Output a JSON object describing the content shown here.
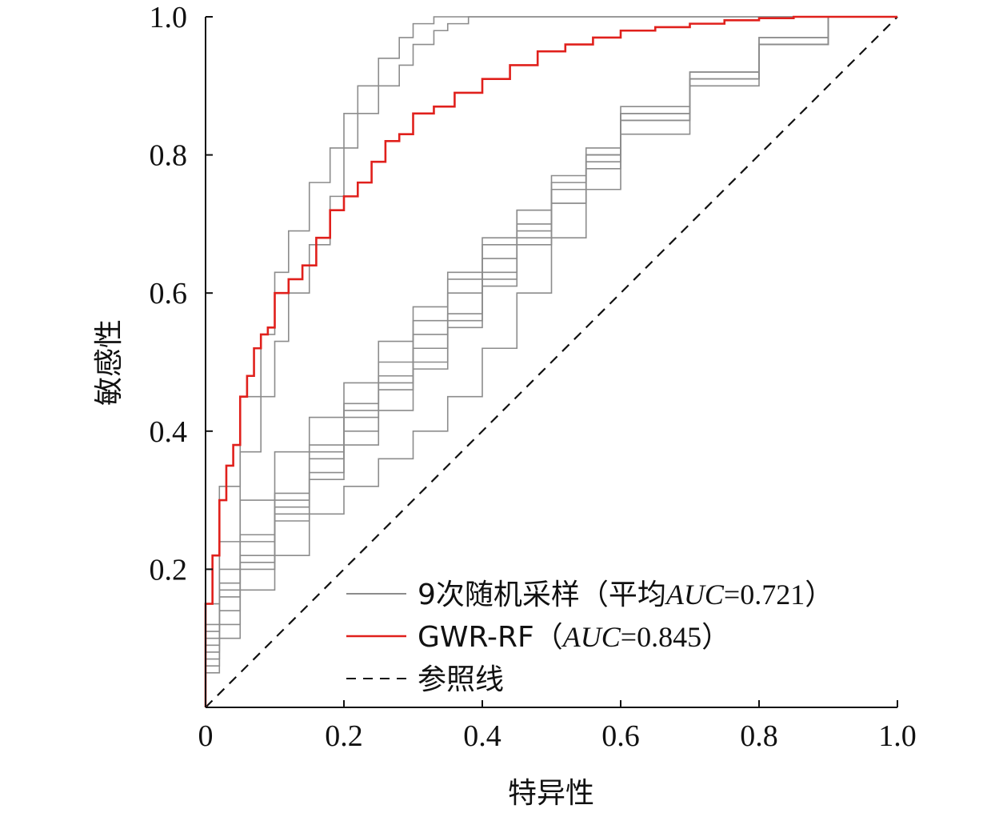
{
  "chart_data": {
    "type": "line",
    "xlabel": "特异性",
    "ylabel": "敏感性",
    "xlim": [
      0,
      1
    ],
    "ylim": [
      0,
      1
    ],
    "x_ticks": [
      "0",
      "0.2",
      "0.4",
      "0.6",
      "0.8",
      "1.0"
    ],
    "y_ticks": [
      "0.2",
      "0.4",
      "0.6",
      "0.8",
      "1.0"
    ],
    "grid": false,
    "legend_position": "bottom-right",
    "legend": [
      {
        "label_prefix": "9次随机采样（平均",
        "auc_label": "AUC",
        "auc_value": "=0.721",
        "label_suffix": "）",
        "color": "#8c8c8c",
        "dash": "solid"
      },
      {
        "label_prefix": "GWR-RF（",
        "auc_label": "AUC",
        "auc_value": "=0.845",
        "label_suffix": "）",
        "color": "#e0201c",
        "dash": "solid"
      },
      {
        "label_prefix": "参照线",
        "auc_label": "",
        "auc_value": "",
        "label_suffix": "",
        "color": "#111111",
        "dash": "dashed"
      }
    ],
    "series": [
      {
        "group": "random",
        "auc": 0.721,
        "x": [
          0,
          0.02,
          0.05,
          0.1,
          0.15,
          0.2,
          0.25,
          0.3,
          0.35,
          0.4,
          0.45,
          0.5,
          0.55,
          0.6,
          0.7,
          0.8,
          0.9,
          1.0
        ],
        "y": [
          0,
          0.1,
          0.18,
          0.25,
          0.31,
          0.37,
          0.43,
          0.48,
          0.54,
          0.6,
          0.65,
          0.7,
          0.75,
          0.8,
          0.86,
          0.92,
          0.97,
          1.0
        ]
      },
      {
        "group": "random",
        "auc": 0.721,
        "x": [
          0,
          0.02,
          0.05,
          0.1,
          0.15,
          0.2,
          0.25,
          0.3,
          0.35,
          0.4,
          0.45,
          0.5,
          0.55,
          0.6,
          0.7,
          0.8,
          0.9,
          1.0
        ],
        "y": [
          0,
          0.08,
          0.16,
          0.22,
          0.29,
          0.36,
          0.42,
          0.47,
          0.52,
          0.57,
          0.63,
          0.68,
          0.73,
          0.78,
          0.85,
          0.91,
          0.96,
          1.0
        ]
      },
      {
        "group": "random",
        "auc": 0.721,
        "x": [
          0,
          0.02,
          0.05,
          0.1,
          0.15,
          0.2,
          0.25,
          0.3,
          0.35,
          0.4,
          0.45,
          0.5,
          0.55,
          0.6,
          0.7,
          0.8,
          0.9,
          1.0
        ],
        "y": [
          0,
          0.06,
          0.12,
          0.2,
          0.27,
          0.33,
          0.38,
          0.43,
          0.49,
          0.55,
          0.61,
          0.67,
          0.73,
          0.79,
          0.85,
          0.91,
          0.96,
          1.0
        ]
      },
      {
        "group": "random",
        "auc": 0.721,
        "x": [
          0,
          0.02,
          0.05,
          0.1,
          0.15,
          0.2,
          0.25,
          0.3,
          0.35,
          0.4,
          0.45,
          0.5,
          0.55,
          0.6,
          0.7,
          0.8,
          0.9,
          1.0
        ],
        "y": [
          0,
          0.05,
          0.1,
          0.17,
          0.22,
          0.28,
          0.32,
          0.36,
          0.4,
          0.45,
          0.52,
          0.6,
          0.68,
          0.75,
          0.83,
          0.9,
          0.96,
          1.0
        ]
      },
      {
        "group": "random",
        "auc": 0.721,
        "x": [
          0,
          0.02,
          0.05,
          0.1,
          0.15,
          0.2,
          0.25,
          0.3,
          0.35,
          0.4,
          0.45,
          0.5,
          0.55,
          0.6,
          0.7,
          0.8,
          0.9,
          1.0
        ],
        "y": [
          0,
          0.09,
          0.17,
          0.24,
          0.3,
          0.38,
          0.44,
          0.5,
          0.56,
          0.62,
          0.67,
          0.72,
          0.77,
          0.81,
          0.87,
          0.92,
          0.97,
          1.0
        ]
      },
      {
        "group": "random",
        "auc": 0.721,
        "x": [
          0,
          0.02,
          0.05,
          0.1,
          0.15,
          0.2,
          0.25,
          0.3,
          0.35,
          0.4,
          0.45,
          0.5,
          0.55,
          0.6,
          0.7,
          0.8,
          0.9,
          1.0
        ],
        "y": [
          0,
          0.07,
          0.14,
          0.21,
          0.28,
          0.34,
          0.4,
          0.46,
          0.5,
          0.56,
          0.62,
          0.69,
          0.75,
          0.8,
          0.86,
          0.91,
          0.96,
          1.0
        ]
      },
      {
        "group": "random",
        "auc": 0.721,
        "x": [
          0,
          0.02,
          0.05,
          0.1,
          0.15,
          0.2,
          0.25,
          0.3,
          0.35,
          0.4,
          0.45,
          0.5,
          0.55,
          0.6,
          0.7,
          0.8,
          0.9,
          1.0
        ],
        "y": [
          0,
          0.11,
          0.2,
          0.3,
          0.37,
          0.42,
          0.47,
          0.53,
          0.58,
          0.63,
          0.68,
          0.72,
          0.76,
          0.8,
          0.86,
          0.91,
          0.96,
          1.0
        ]
      },
      {
        "group": "random",
        "auc": 0.721,
        "x": [
          0,
          0.02,
          0.05,
          0.08,
          0.1,
          0.12,
          0.15,
          0.18,
          0.2,
          0.22,
          0.25,
          0.28,
          0.3,
          0.33,
          0.35,
          0.38,
          0.4,
          0.5,
          0.6,
          0.8,
          1.0
        ],
        "y": [
          0,
          0.15,
          0.32,
          0.45,
          0.54,
          0.63,
          0.69,
          0.76,
          0.81,
          0.86,
          0.9,
          0.94,
          0.97,
          0.99,
          1.0,
          1.0,
          1.0,
          1.0,
          1.0,
          1.0,
          1.0
        ]
      },
      {
        "group": "random",
        "auc": 0.721,
        "x": [
          0,
          0.02,
          0.05,
          0.08,
          0.1,
          0.12,
          0.15,
          0.18,
          0.2,
          0.22,
          0.25,
          0.28,
          0.3,
          0.33,
          0.35,
          0.38,
          0.4,
          0.5,
          0.6,
          0.8,
          1.0
        ],
        "y": [
          0,
          0.12,
          0.24,
          0.37,
          0.45,
          0.53,
          0.6,
          0.67,
          0.74,
          0.81,
          0.86,
          0.9,
          0.93,
          0.96,
          0.98,
          0.99,
          1.0,
          1.0,
          1.0,
          1.0,
          1.0
        ]
      },
      {
        "group": "gwr-rf",
        "auc": 0.845,
        "x": [
          0,
          0.01,
          0.02,
          0.03,
          0.04,
          0.05,
          0.06,
          0.07,
          0.08,
          0.09,
          0.1,
          0.12,
          0.14,
          0.16,
          0.18,
          0.2,
          0.22,
          0.24,
          0.26,
          0.28,
          0.3,
          0.33,
          0.36,
          0.4,
          0.44,
          0.48,
          0.52,
          0.56,
          0.6,
          0.65,
          0.7,
          0.75,
          0.8,
          0.85,
          0.9,
          1.0
        ],
        "y": [
          0,
          0.15,
          0.22,
          0.3,
          0.35,
          0.38,
          0.45,
          0.48,
          0.52,
          0.54,
          0.55,
          0.6,
          0.62,
          0.64,
          0.68,
          0.72,
          0.74,
          0.76,
          0.79,
          0.82,
          0.83,
          0.86,
          0.87,
          0.89,
          0.91,
          0.93,
          0.95,
          0.96,
          0.97,
          0.98,
          0.985,
          0.99,
          0.995,
          0.998,
          1.0,
          1.0
        ]
      },
      {
        "group": "reference",
        "x": [
          0,
          1
        ],
        "y": [
          0,
          1
        ]
      }
    ]
  }
}
